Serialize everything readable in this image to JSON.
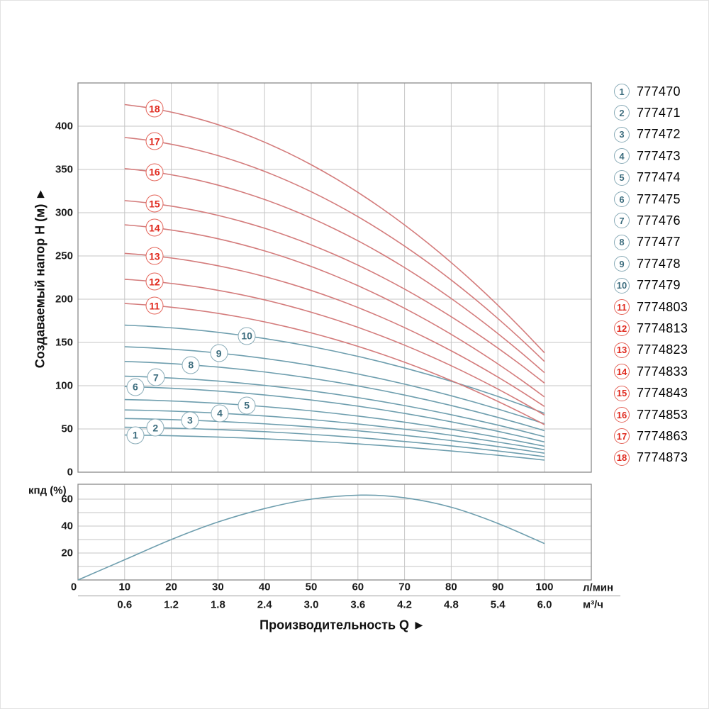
{
  "figure": {
    "y_axis_title": "Создаваемый напор Н (м) ►",
    "x_axis_title": "Производительность Q ►",
    "x_unit_primary": "л/мин",
    "x_unit_secondary": "м³/ч",
    "efficiency_label": "кпд (%)"
  },
  "colors": {
    "blue_curve": "#6e9eae",
    "red_curve": "#d47c7c",
    "grid": "#c6c6c6",
    "frame": "#8a8a8a",
    "blue_label": "#3d6d7e",
    "red_label": "#e0291e"
  },
  "chart_data": [
    {
      "type": "line",
      "name": "head-flow-curves",
      "x_label": "Производительность Q",
      "y_label": "Создаваемый напор Н (м)",
      "xlim": [
        0,
        110
      ],
      "ylim": [
        0,
        450
      ],
      "x_ticks_lmin": [
        "0",
        "10",
        "20",
        "30",
        "40",
        "50",
        "60",
        "70",
        "80",
        "90",
        "100"
      ],
      "x_tick_values": [
        0,
        10,
        20,
        30,
        40,
        50,
        60,
        70,
        80,
        90,
        100
      ],
      "x_ticks_m3h": [
        "0.6",
        "1.2",
        "1.8",
        "2.4",
        "3.0",
        "3.6",
        "4.2",
        "4.8",
        "5.4",
        "6.0"
      ],
      "x_ticks_m3h_at_lmin": [
        10,
        20,
        30,
        40,
        50,
        60,
        70,
        80,
        90,
        100
      ],
      "y_ticks": [
        0,
        50,
        100,
        150,
        200,
        250,
        300,
        350,
        400
      ],
      "grid": "on",
      "q_range_lmin": [
        10,
        100
      ],
      "curve_model": "H(Q) = H_at_Q10 - (H_at_Q10 - H_at_Q100) * (Q*Q - 100) / 9900",
      "series": [
        {
          "label": "1",
          "model": "777470",
          "group": "blue",
          "H_at_Q10": 43,
          "H_at_Q100": 14,
          "label_at_Q": 12.3
        },
        {
          "label": "2",
          "model": "777471",
          "group": "blue",
          "H_at_Q10": 52,
          "H_at_Q100": 18,
          "label_at_Q": 16.6
        },
        {
          "label": "3",
          "model": "777472",
          "group": "blue",
          "H_at_Q10": 62,
          "H_at_Q100": 22,
          "label_at_Q": 24.0
        },
        {
          "label": "4",
          "model": "777473",
          "group": "blue",
          "H_at_Q10": 72,
          "H_at_Q100": 26,
          "label_at_Q": 30.4
        },
        {
          "label": "5",
          "model": "777474",
          "group": "blue",
          "H_at_Q10": 84,
          "H_at_Q100": 30,
          "label_at_Q": 36.2
        },
        {
          "label": "6",
          "model": "777475",
          "group": "blue",
          "H_at_Q10": 99,
          "H_at_Q100": 35,
          "label_at_Q": 12.3
        },
        {
          "label": "7",
          "model": "777476",
          "group": "blue",
          "H_at_Q10": 111,
          "H_at_Q100": 41,
          "label_at_Q": 16.7
        },
        {
          "label": "8",
          "model": "777477",
          "group": "blue",
          "H_at_Q10": 128,
          "H_at_Q100": 48,
          "label_at_Q": 24.2
        },
        {
          "label": "9",
          "model": "777478",
          "group": "blue",
          "H_at_Q10": 145,
          "H_at_Q100": 56,
          "label_at_Q": 30.2
        },
        {
          "label": "10",
          "model": "777479",
          "group": "blue",
          "H_at_Q10": 170,
          "H_at_Q100": 68,
          "label_at_Q": 36.2
        },
        {
          "label": "11",
          "model": "7774803",
          "group": "red",
          "H_at_Q10": 195,
          "H_at_Q100": 55,
          "label_at_Q": 16.4
        },
        {
          "label": "12",
          "model": "7774813",
          "group": "red",
          "H_at_Q10": 223,
          "H_at_Q100": 66,
          "label_at_Q": 16.4
        },
        {
          "label": "13",
          "model": "7774823",
          "group": "red",
          "H_at_Q10": 253,
          "H_at_Q100": 76,
          "label_at_Q": 16.4
        },
        {
          "label": "14",
          "model": "7774833",
          "group": "red",
          "H_at_Q10": 286,
          "H_at_Q100": 87,
          "label_at_Q": 16.4
        },
        {
          "label": "15",
          "model": "7774843",
          "group": "red",
          "H_at_Q10": 314,
          "H_at_Q100": 103,
          "label_at_Q": 16.4
        },
        {
          "label": "16",
          "model": "7774853",
          "group": "red",
          "H_at_Q10": 351,
          "H_at_Q100": 115,
          "label_at_Q": 16.4
        },
        {
          "label": "17",
          "model": "7774863",
          "group": "red",
          "H_at_Q10": 387,
          "H_at_Q100": 128,
          "label_at_Q": 16.4
        },
        {
          "label": "18",
          "model": "7774873",
          "group": "red",
          "H_at_Q10": 425,
          "H_at_Q100": 138,
          "label_at_Q": 16.4
        }
      ]
    },
    {
      "type": "line",
      "name": "efficiency-curve",
      "y_label": "кпд (%)",
      "xlim": [
        0,
        110
      ],
      "ylim": [
        0,
        71
      ],
      "y_ticks_labeled": [
        0,
        20,
        40,
        60
      ],
      "y_grid_step": 10,
      "grid": "on",
      "points": [
        [
          0,
          0
        ],
        [
          10,
          15
        ],
        [
          20,
          30
        ],
        [
          30,
          43
        ],
        [
          40,
          53
        ],
        [
          50,
          60
        ],
        [
          61,
          63
        ],
        [
          70,
          61
        ],
        [
          80,
          54
        ],
        [
          90,
          42
        ],
        [
          100,
          27
        ]
      ]
    }
  ]
}
